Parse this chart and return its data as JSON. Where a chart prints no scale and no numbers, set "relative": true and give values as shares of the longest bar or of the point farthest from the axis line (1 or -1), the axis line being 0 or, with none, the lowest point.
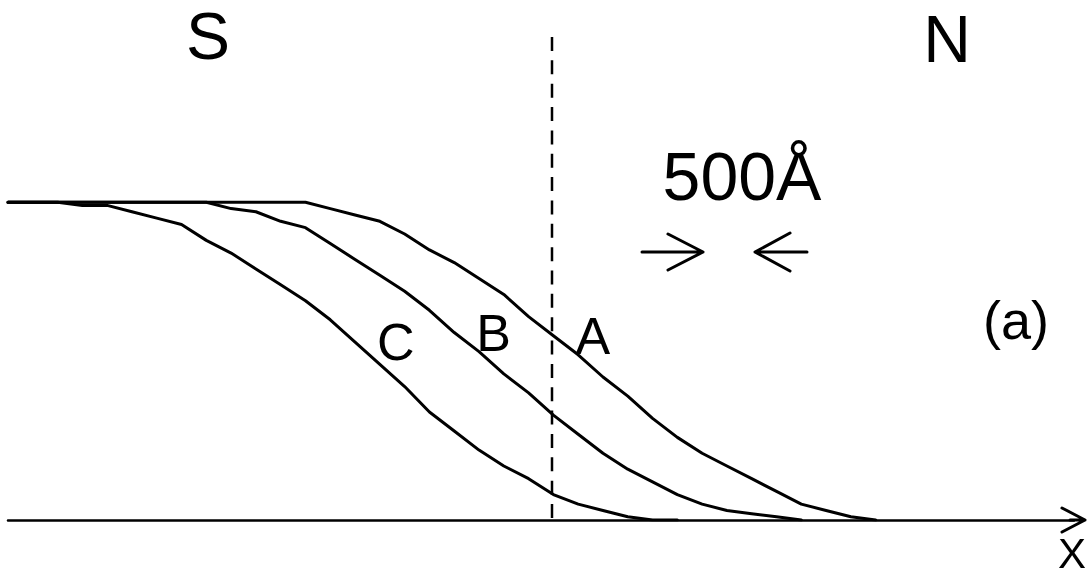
{
  "chart_data": {
    "type": "line",
    "relative": true,
    "xlabel": "X",
    "categories": [
      null,
      null,
      null,
      null,
      null,
      null,
      null,
      null,
      null,
      null,
      null,
      null,
      null,
      null,
      null,
      null,
      null,
      null,
      null,
      null,
      null,
      null,
      null,
      null,
      null,
      null,
      null,
      null,
      null,
      null,
      null,
      null,
      null,
      null,
      null,
      null,
      null,
      null,
      null,
      null,
      null,
      null,
      null,
      null
    ],
    "series": [
      {
        "name": "A",
        "color": "#000000",
        "values": [
          1,
          1,
          1,
          1,
          1,
          1,
          1,
          1,
          1,
          1,
          1,
          1,
          1,
          0.98,
          0.96,
          0.94,
          0.9,
          0.85,
          0.81,
          0.76,
          0.71,
          0.64,
          0.58,
          0.52,
          0.45,
          0.39,
          0.32,
          0.26,
          0.21,
          0.17,
          0.13,
          0.09,
          0.05,
          0.03,
          0.01,
          0,
          null,
          null,
          null,
          null,
          null,
          null,
          null,
          null
        ]
      },
      {
        "name": "B",
        "color": "#000000",
        "values": [
          1,
          1,
          1,
          1,
          1,
          1,
          1,
          1,
          1,
          0.98,
          0.97,
          0.94,
          0.92,
          0.87,
          0.82,
          0.77,
          0.72,
          0.66,
          0.59,
          0.53,
          0.46,
          0.4,
          0.33,
          0.27,
          0.21,
          0.16,
          0.12,
          0.08,
          0.05,
          0.03,
          0.02,
          0.01,
          0,
          null,
          null,
          null,
          null,
          null,
          null,
          null,
          null,
          null,
          null,
          null
        ]
      },
      {
        "name": "C",
        "color": "#000000",
        "values": [
          1,
          1,
          1,
          0.99,
          0.99,
          0.97,
          0.95,
          0.93,
          0.88,
          0.84,
          0.79,
          0.74,
          0.69,
          0.63,
          0.56,
          0.49,
          0.42,
          0.34,
          0.28,
          0.22,
          0.17,
          0.13,
          0.08,
          0.05,
          0.03,
          0.01,
          0,
          0,
          null,
          null,
          null,
          null,
          null,
          null,
          null,
          null,
          null,
          null,
          null,
          null,
          null,
          null,
          null,
          null
        ]
      }
    ],
    "annotations": [
      "S",
      "N",
      "500Å",
      "(a)"
    ]
  }
}
